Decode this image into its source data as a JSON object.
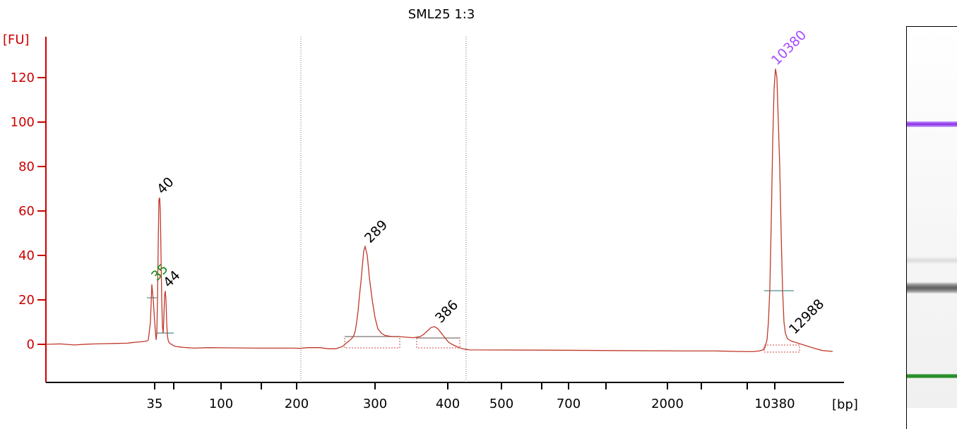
{
  "chart_data": {
    "type": "line",
    "title": "SML25 1:3",
    "ylabel": "[FU]",
    "xlabel": "[bp]",
    "ylim": [
      -17,
      137
    ],
    "y_ticks": [
      0,
      20,
      40,
      60,
      80,
      100,
      120
    ],
    "x_tick_labels": [
      "35",
      "100",
      "200",
      "300",
      "400",
      "500",
      "700",
      "2000",
      "10380"
    ],
    "x_ticks_unlabeled": 6,
    "series": [
      {
        "color": "#c0392b",
        "x": [
          0,
          20,
          40,
          60,
          80,
          100,
          115,
          120,
          128,
          134,
          139,
          143,
          145,
          148,
          150,
          152,
          154,
          156,
          157,
          158,
          159,
          160,
          161,
          162,
          163,
          164,
          165,
          166,
          167,
          168,
          169,
          170,
          171,
          172,
          173,
          174,
          175,
          176,
          177,
          178,
          179,
          180,
          182,
          185,
          190,
          195,
          200,
          205,
          210,
          230,
          260,
          300,
          330,
          350,
          360,
          370,
          380,
          388,
          395,
          400,
          405,
          410,
          415,
          420,
          425,
          428,
          431,
          434,
          436,
          438,
          440,
          442,
          444,
          446,
          448,
          450,
          452,
          455,
          458,
          462,
          466,
          470,
          475,
          480,
          490,
          500,
          510,
          520,
          530,
          535,
          540,
          545,
          550,
          555,
          560,
          565,
          570,
          575,
          580,
          585,
          590,
          595,
          600,
          700,
          800,
          900,
          950,
          980,
          1000,
          1010,
          1015,
          1018,
          1021,
          1023,
          1025,
          1027,
          1029,
          1031,
          1033,
          1035,
          1037,
          1039,
          1041,
          1043,
          1045,
          1047,
          1050,
          1055,
          1060,
          1065,
          1070,
          1080,
          1090,
          1100,
          1114
        ],
        "y": [
          0,
          0.2,
          -0.3,
          0.1,
          0.3,
          0.4,
          0.5,
          0.7,
          1.0,
          1.1,
          1.3,
          1.5,
          2.0,
          10,
          27,
          20,
          10,
          2.0,
          5,
          20,
          45,
          65,
          66,
          60,
          40,
          20,
          8,
          5,
          12,
          22,
          24,
          20,
          10,
          4,
          2,
          1,
          0.7,
          0.3,
          0.1,
          0,
          -0.2,
          -0.5,
          -0.8,
          -1.0,
          -1.2,
          -1.4,
          -1.5,
          -1.6,
          -1.7,
          -1.5,
          -1.6,
          -1.7,
          -1.7,
          -1.7,
          -1.8,
          -1.5,
          -1.5,
          -1.5,
          -1.8,
          -2.0,
          -2.0,
          -2.0,
          -1.5,
          -1.0,
          0.5,
          1.2,
          2.0,
          3.0,
          4.0,
          6.0,
          10,
          15,
          22,
          28,
          35,
          42,
          44,
          40,
          30,
          20,
          12,
          7,
          5,
          4,
          3.5,
          3.5,
          3.2,
          3.0,
          3.5,
          4.5,
          6.0,
          7.5,
          8.0,
          7.0,
          5.0,
          3.0,
          1.0,
          0,
          -0.8,
          -1.5,
          -2.0,
          -2.3,
          -2.5,
          -2.6,
          -2.8,
          -3.0,
          -3.0,
          -3.2,
          -3.3,
          -3.0,
          -2.5,
          -1.5,
          2.0,
          10,
          25,
          55,
          90,
          115,
          124,
          120,
          100,
          80,
          50,
          25,
          10,
          5,
          2.5,
          1.5,
          1.0,
          0.5,
          0,
          -1.0,
          -2.0,
          -2.8,
          -3.2
        ]
      }
    ],
    "peaks": [
      {
        "label": "35",
        "x": 153,
        "y": 27,
        "color": "#1a8a1a"
      },
      {
        "label": "40",
        "x": 161,
        "y": 66,
        "color": "#000000"
      },
      {
        "label": "44",
        "x": 170,
        "y": 24,
        "color": "#000000"
      },
      {
        "label": "289",
        "x": 455,
        "y": 44,
        "color": "#000000"
      },
      {
        "label": "386",
        "x": 555,
        "y": 8,
        "color": "#000000"
      },
      {
        "label": "10380",
        "x": 1031,
        "y": 124,
        "color": "#a64dff"
      },
      {
        "label": "12988",
        "x": 1056,
        "y": 3,
        "color": "#000000"
      }
    ],
    "grid": false,
    "legend": "none"
  }
}
